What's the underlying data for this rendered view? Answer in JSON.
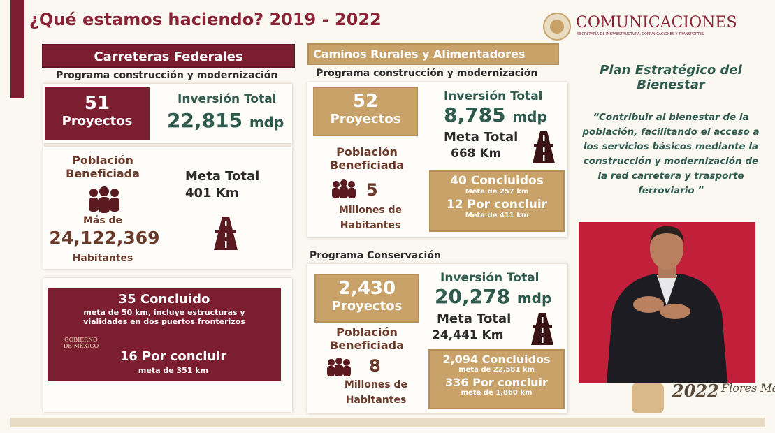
{
  "header": {
    "title": "¿Qué estamos haciendo? 2019 - 2022",
    "ministry": "COMUNICACIONES",
    "ministry_subtitle": "SECRETARÍA DE INFRAESTRUCTURA, COMUNICACIONES Y TRANSPORTES"
  },
  "federal": {
    "title": "Carreteras Federales",
    "subtitle": "Programa construcción y modernización",
    "projects": "51",
    "projects_label": "Proyectos",
    "investment_label": "Inversión Total",
    "investment": "22,815",
    "investment_unit": "mdp",
    "population_label": "Población Beneficiada",
    "population_prefix": "Más de",
    "population": "24,122,369",
    "population_unit": "Habitantes",
    "meta_label": "Meta Total",
    "meta": "401",
    "meta_unit": "Km",
    "concluded": "35 Concluido",
    "concluded_note": "meta de 50 km, incluye estructuras y vialidades en dos puertos fronterizos",
    "gov_logo": "GOBIERNO DE MÉXICO",
    "pending": "16 Por concluir",
    "pending_note": "meta de 351 km"
  },
  "rural": {
    "title": "Caminos Rurales y Alimentadores",
    "construction": {
      "subtitle": "Programa construcción y modernización",
      "projects": "52",
      "projects_label": "Proyectos",
      "investment_label": "Inversión Total",
      "investment": "8,785",
      "investment_unit": "mdp",
      "meta_label": "Meta Total",
      "meta": "668",
      "meta_unit": "Km",
      "population_label": "Población Beneficiada",
      "population": "5",
      "population_unit": "Millones de Habitantes",
      "concluded": "40 Concluidos",
      "concluded_note": "Meta de 257 km",
      "pending": "12 Por concluir",
      "pending_note": "Meta de 411 km"
    },
    "conservation": {
      "subtitle": "Programa Conservación",
      "projects": "2,430",
      "projects_label": "Proyectos",
      "investment_label": "Inversión Total",
      "investment": "20,278",
      "investment_unit": "mdp",
      "meta_label": "Meta Total",
      "meta": "24,441",
      "meta_unit": "Km",
      "population_label": "Población Beneficiada",
      "population": "8",
      "population_unit": "Millones de Habitantes",
      "concluded": "2,094 Concluidos",
      "concluded_note": "meta de 22,581 km",
      "pending": "336 Por concluir",
      "pending_note": "meta de 1,860 km"
    }
  },
  "plan": {
    "title": "Plan Estratégico del Bienestar",
    "quote": "“Contribuir al bienestar de la población, facilitando el acceso a los servicios básicos mediante la construcción y modernización de la red carretera y trasporte ferroviario ”"
  },
  "footer": {
    "year": "2022",
    "name": "Flores Magón"
  }
}
